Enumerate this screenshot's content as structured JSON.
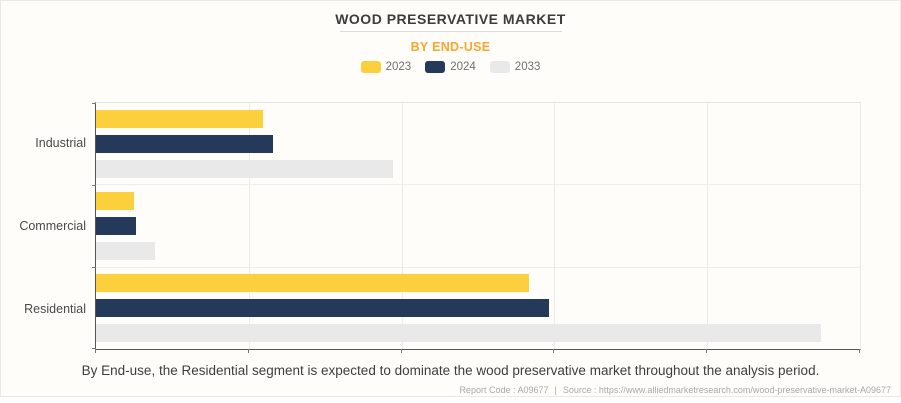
{
  "header": {
    "title": "WOOD PRESERVATIVE MARKET",
    "subtitle": "BY END-USE"
  },
  "chart_data": {
    "type": "bar",
    "orientation": "horizontal",
    "title": "WOOD PRESERVATIVE MARKET",
    "subtitle": "BY END-USE",
    "categories": [
      "Industrial",
      "Commercial",
      "Residential"
    ],
    "series": [
      {
        "name": "2023",
        "color": "#FCD03C",
        "values": [
          21.9,
          5.0,
          56.7
        ]
      },
      {
        "name": "2024",
        "color": "#25395B",
        "values": [
          23.2,
          5.3,
          59.3
        ]
      },
      {
        "name": "2033",
        "color": "#E9E9E9",
        "values": [
          38.9,
          7.7,
          94.9
        ]
      }
    ],
    "xlabel": "",
    "ylabel": "",
    "xlim": [
      0,
      100
    ],
    "x_gridlines": [
      20,
      40,
      60,
      80,
      100
    ],
    "x_tick_labels_visible": false,
    "grid": true,
    "legend_position": "top",
    "note": "values are relative bar lengths in percent of plot width; no numeric axis labels shown"
  },
  "footer": {
    "description": "By End-use, the Residential segment is expected to dominate the wood preservative market throughout the analysis period.",
    "report_code": "Report Code : A09677",
    "separator": "|",
    "source": "Source : https://www.alliedmarketresearch.com/wood-preservative-market-A09677"
  },
  "colors": {
    "background": "#FFFDF9",
    "accent_subtitle": "#F9A62B",
    "series_2023": "#FCD03C",
    "series_2024": "#25395B",
    "series_2033": "#E9E9E9",
    "axis": "#555555",
    "gridline": "#EDEBE6",
    "title_text": "#3C3C3C",
    "footer_text": "#A8A8A8"
  }
}
